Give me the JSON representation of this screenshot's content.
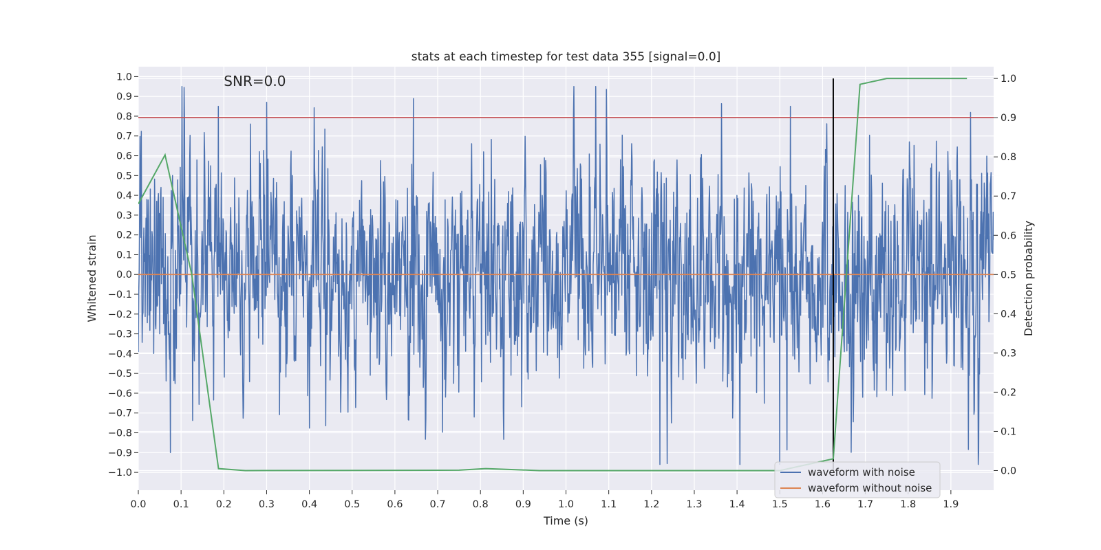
{
  "chart_data": {
    "type": "line",
    "title": "stats at each timestep for test data 355 [signal=0.0]",
    "annotation": "SNR=0.0",
    "xlabel": "Time (s)",
    "ylabel": "Whitened strain",
    "ylabel_right": "Detection probability",
    "xlim": [
      0.0,
      2.0
    ],
    "ylim": [
      -1.09,
      1.05
    ],
    "ylim_right": [
      -0.05,
      1.03
    ],
    "x_ticks": [
      "0.0",
      "0.1",
      "0.2",
      "0.3",
      "0.4",
      "0.5",
      "0.6",
      "0.7",
      "0.8",
      "0.9",
      "1.0",
      "1.1",
      "1.2",
      "1.3",
      "1.4",
      "1.5",
      "1.6",
      "1.7",
      "1.8",
      "1.9"
    ],
    "x_tick_values": [
      0.0,
      0.1,
      0.2,
      0.3,
      0.4,
      0.5,
      0.6,
      0.7,
      0.8,
      0.9,
      1.0,
      1.1,
      1.2,
      1.3,
      1.4,
      1.5,
      1.6,
      1.7,
      1.8,
      1.9
    ],
    "y_ticks": [
      "1.0",
      "0.9",
      "0.8",
      "0.7",
      "0.6",
      "0.5",
      "0.4",
      "0.3",
      "0.2",
      "0.1",
      "0.0",
      "−0.1",
      "−0.2",
      "−0.3",
      "−0.4",
      "−0.5",
      "−0.6",
      "−0.7",
      "−0.8",
      "−0.9",
      "−1.0"
    ],
    "y_tick_values": [
      1.0,
      0.9,
      0.8,
      0.7,
      0.6,
      0.5,
      0.4,
      0.3,
      0.2,
      0.1,
      0.0,
      -0.1,
      -0.2,
      -0.3,
      -0.4,
      -0.5,
      -0.6,
      -0.7,
      -0.8,
      -0.9,
      -1.0
    ],
    "y_right_ticks": [
      "1.0",
      "0.9",
      "0.8",
      "0.7",
      "0.6",
      "0.5",
      "0.4",
      "0.3",
      "0.2",
      "0.1",
      "0.0"
    ],
    "y_right_tick_values": [
      1.0,
      0.9,
      0.8,
      0.7,
      0.6,
      0.5,
      0.4,
      0.3,
      0.2,
      0.1,
      0.0
    ],
    "colors": {
      "background": "#eaeaf2",
      "grid": "#ffffff",
      "noise_waveform": "#4c72b0",
      "clean_waveform": "#dd8452",
      "detection": "#55a868",
      "threshold": "#c44e52",
      "marker": "#000000"
    },
    "noise_waveform": {
      "name": "waveform with noise",
      "n_samples": 2000,
      "x_range": [
        0.0,
        2.0
      ],
      "typical_amplitude": 0.3,
      "range": [
        -0.96,
        0.95
      ],
      "notable_peaks": [
        [
          0.187,
          0.85
        ],
        [
          0.3,
          0.87
        ],
        [
          1.07,
          0.95
        ],
        [
          1.525,
          0.85
        ],
        [
          1.5,
          -0.96
        ],
        [
          1.22,
          -0.96
        ],
        [
          0.075,
          -0.9
        ]
      ]
    },
    "clean_waveform": {
      "name": "waveform without noise",
      "constant_value": 0.0
    },
    "threshold": {
      "value": 0.9,
      "axis": "right"
    },
    "marker_line": {
      "x": 1.625,
      "y_range": [
        0.0,
        1.0
      ],
      "axis": "right"
    },
    "detection_probability": {
      "axis": "right",
      "x": [
        0.0,
        0.0625,
        0.125,
        0.1875,
        0.25,
        0.75,
        0.8125,
        0.9375,
        1.5,
        1.625,
        1.6875,
        1.75,
        1.9375
      ],
      "y": [
        0.68,
        0.805,
        0.5,
        0.005,
        0.0,
        0.001,
        0.005,
        0.0,
        0.0,
        0.03,
        0.985,
        1.0,
        1.0
      ]
    },
    "legend": {
      "position": "lower-right",
      "entries": [
        "waveform with noise",
        "waveform without noise"
      ]
    }
  }
}
